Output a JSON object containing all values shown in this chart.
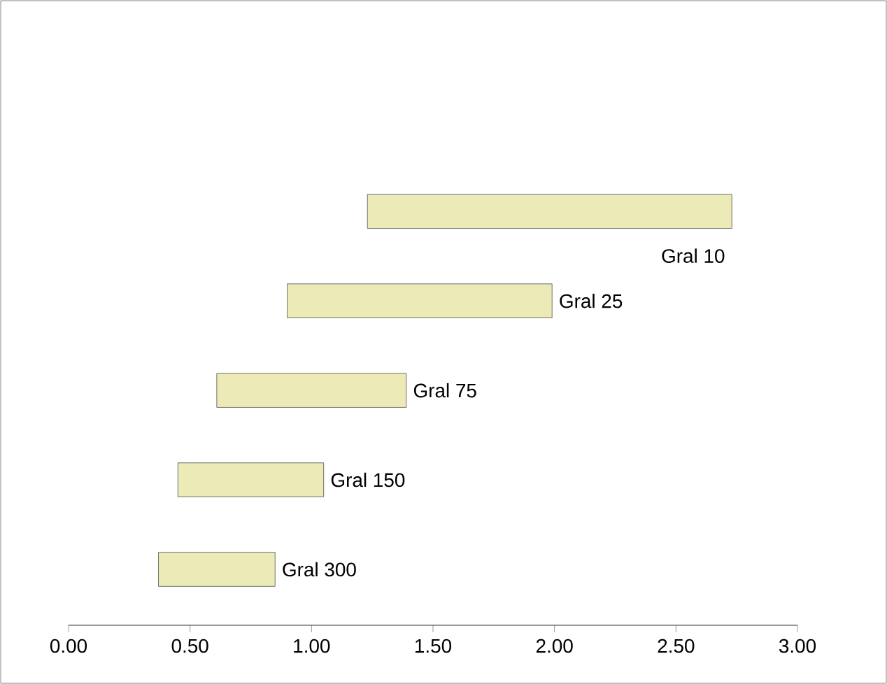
{
  "chart_data": {
    "type": "bar",
    "orientation": "horizontal",
    "categories": [
      "Gral 10",
      "Gral 25",
      "Gral 75",
      "Gral 150",
      "Gral 300"
    ],
    "base": [
      1.23,
      0.9,
      0.61,
      0.45,
      0.37
    ],
    "values": [
      1.5,
      1.09,
      0.78,
      0.6,
      0.48
    ],
    "color": "#ecebb8",
    "xlim": [
      0,
      3
    ],
    "xticks": [
      {
        "value": 0,
        "label": "0.00"
      },
      {
        "value": 0.5,
        "label": "0.50"
      },
      {
        "value": 1,
        "label": "1.00"
      },
      {
        "value": 1.5,
        "label": "1.50"
      },
      {
        "value": 2,
        "label": "2.00"
      },
      {
        "value": 2.5,
        "label": "2.50"
      },
      {
        "value": 3,
        "label": "3.00"
      }
    ]
  }
}
